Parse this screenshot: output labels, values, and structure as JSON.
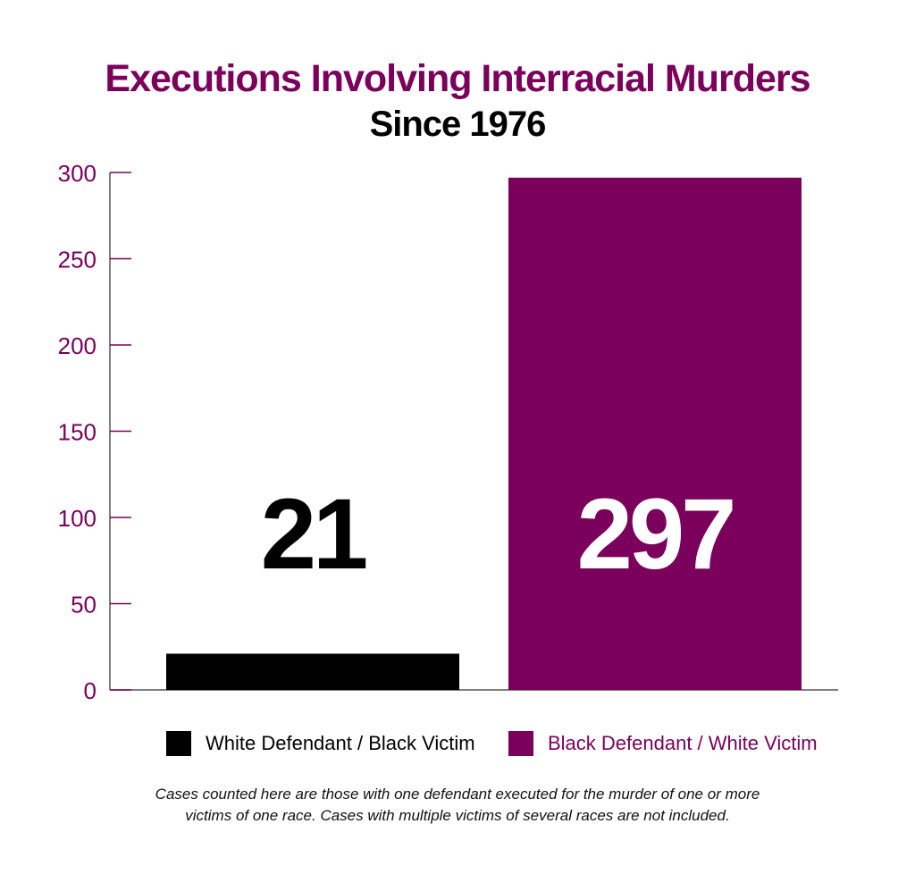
{
  "title": "Executions Involving Interracial Murders",
  "subtitle": "Since 1976",
  "colors": {
    "accent": "#7a005c",
    "black": "#000000",
    "axis": "#555555"
  },
  "chart_data": {
    "type": "bar",
    "title": "Executions Involving Interracial Murders",
    "subtitle": "Since 1976",
    "categories": [
      "White Defendant / Black Victim",
      "Black Defendant / White Victim"
    ],
    "values": [
      21,
      297
    ],
    "data_labels": [
      "21",
      "297"
    ],
    "colors": [
      "#000000",
      "#7a005c"
    ],
    "ylim": [
      0,
      300
    ],
    "yticks": [
      0,
      50,
      100,
      150,
      200,
      250,
      300
    ],
    "ytick_labels": [
      "0",
      "50",
      "100",
      "150",
      "200",
      "250",
      "300"
    ],
    "xlabel": "",
    "ylabel": "",
    "grid": false,
    "legend_position": "bottom"
  },
  "legend": [
    {
      "label": "White Defendant / Black Victim",
      "color": "#000000"
    },
    {
      "label": "Black Defendant / White Victim",
      "color": "#7a005c"
    }
  ],
  "note": {
    "line1": "Cases counted here are those with one defendant executed for the murder of one or more",
    "line2": "victims of one race. Cases with multiple victims of several races are not included."
  }
}
